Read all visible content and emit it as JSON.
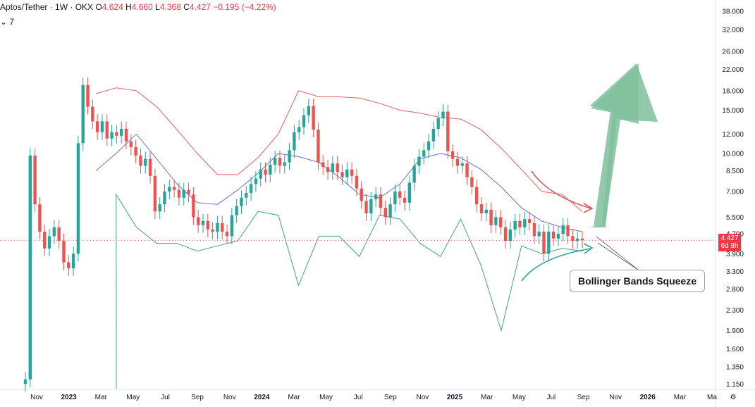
{
  "header": {
    "symbol": "Aptos/Tether · 1W · OKX",
    "o_label": "O",
    "o_value": "4.624",
    "h_label": "H",
    "h_value": "4.660",
    "l_label": "L",
    "l_value": "4.368",
    "c_label": "C",
    "c_value": "4.427",
    "change": "−0.195 (−4.22%)",
    "collapse_count": "7"
  },
  "price_tag": {
    "price": "4.427",
    "countdown": "6d 8h"
  },
  "annotation": {
    "label": "Bollinger Bands Squeeze"
  },
  "colors": {
    "up": "#26a69a",
    "down": "#ef5350",
    "upper_band": "#e0606a",
    "basis": "#6672d8",
    "lower_band": "#40a090",
    "arrow_big": "#7fbf9c"
  },
  "chart_data": {
    "type": "candlestick",
    "title": "Aptos/Tether · 1W · OKX",
    "y_scale": "log",
    "ylim": [
      1.1,
      40
    ],
    "y_ticks": [
      "38.000",
      "32.000",
      "26.000",
      "22.000",
      "18.000",
      "15.000",
      "12.000",
      "10.000",
      "8.500",
      "7.000",
      "5.500",
      "4.700",
      "3.900",
      "3.300",
      "2.800",
      "2.300",
      "1.900",
      "1.600",
      "1.350",
      "1.150"
    ],
    "x_ticks": [
      {
        "label": "Nov",
        "bold": false
      },
      {
        "label": "2023",
        "bold": true
      },
      {
        "label": "Mar",
        "bold": false
      },
      {
        "label": "May",
        "bold": false
      },
      {
        "label": "Jul",
        "bold": false
      },
      {
        "label": "Sep",
        "bold": false
      },
      {
        "label": "Nov",
        "bold": false
      },
      {
        "label": "2024",
        "bold": true
      },
      {
        "label": "Mar",
        "bold": false
      },
      {
        "label": "May",
        "bold": false
      },
      {
        "label": "Jul",
        "bold": false
      },
      {
        "label": "Sep",
        "bold": false
      },
      {
        "label": "Nov",
        "bold": false
      },
      {
        "label": "2025",
        "bold": true
      },
      {
        "label": "Mar",
        "bold": false
      },
      {
        "label": "May",
        "bold": false
      },
      {
        "label": "Jul",
        "bold": false
      },
      {
        "label": "Sep",
        "bold": false
      },
      {
        "label": "Nov",
        "bold": false
      },
      {
        "label": "2026",
        "bold": true
      },
      {
        "label": "Mar",
        "bold": false
      },
      {
        "label": "Ma",
        "bold": false
      }
    ],
    "current_price": 4.427,
    "candle_closes": [
      1.2,
      9.8,
      6.2,
      4.8,
      4.1,
      4.6,
      5.0,
      4.4,
      3.6,
      3.4,
      3.9,
      11.0,
      19.0,
      15.5,
      13.5,
      12.2,
      13.5,
      11.5,
      12.2,
      11.8,
      12.6,
      11.2,
      10.6,
      9.8,
      8.9,
      9.5,
      8.1,
      5.8,
      6.2,
      7.0,
      7.3,
      7.1,
      6.6,
      7.1,
      6.8,
      5.5,
      5.1,
      5.3,
      4.9,
      4.8,
      5.2,
      4.8,
      4.6,
      5.6,
      6.1,
      6.6,
      6.9,
      7.5,
      7.9,
      8.6,
      8.2,
      9.0,
      9.6,
      8.9,
      9.2,
      10.3,
      12.2,
      12.8,
      14.3,
      15.6,
      12.5,
      9.2,
      8.8,
      8.4,
      9.1,
      8.4,
      8.0,
      8.6,
      8.1,
      7.2,
      6.4,
      5.7,
      6.5,
      6.8,
      6.0,
      5.5,
      6.2,
      7.0,
      6.6,
      6.3,
      7.6,
      8.9,
      9.7,
      10.3,
      11.2,
      12.6,
      13.9,
      14.8,
      10.2,
      9.5,
      8.9,
      9.1,
      8.0,
      7.3,
      6.2,
      5.7,
      5.9,
      5.1,
      5.5,
      5.0,
      4.4,
      4.9,
      5.3,
      5.0,
      5.4,
      5.2,
      4.6,
      4.8,
      3.9,
      4.8,
      4.5,
      4.7,
      5.1,
      4.6,
      4.4,
      4.5,
      4.43
    ],
    "series": [
      {
        "name": "Upper Band",
        "values": [
          17.5,
          18.5,
          18.0,
          15.5,
          12.5,
          10.0,
          8.2,
          8.2,
          9.6,
          12.0,
          18.0,
          17.0,
          17.0,
          16.8,
          16.0,
          15.0,
          14.6,
          14.0,
          13.8,
          12.5,
          10.5,
          8.6,
          7.0,
          6.8,
          5.8
        ]
      },
      {
        "name": "Basis",
        "values": [
          8.5,
          10.0,
          12.0,
          9.5,
          7.5,
          6.3,
          6.2,
          7.1,
          8.3,
          10.0,
          9.7,
          9.2,
          8.0,
          6.8,
          6.6,
          7.5,
          9.5,
          10.0,
          9.6,
          8.6,
          7.3,
          6.0,
          5.3,
          5.0,
          4.8
        ]
      },
      {
        "name": "Lower Band",
        "values": [
          1.1,
          6.8,
          5.0,
          4.3,
          4.3,
          4.0,
          4.2,
          4.4,
          5.8,
          5.6,
          2.9,
          4.6,
          4.6,
          3.8,
          5.6,
          5.4,
          4.3,
          3.8,
          5.4,
          3.5,
          1.9,
          4.2,
          3.9,
          4.1,
          4.0
        ]
      }
    ]
  }
}
